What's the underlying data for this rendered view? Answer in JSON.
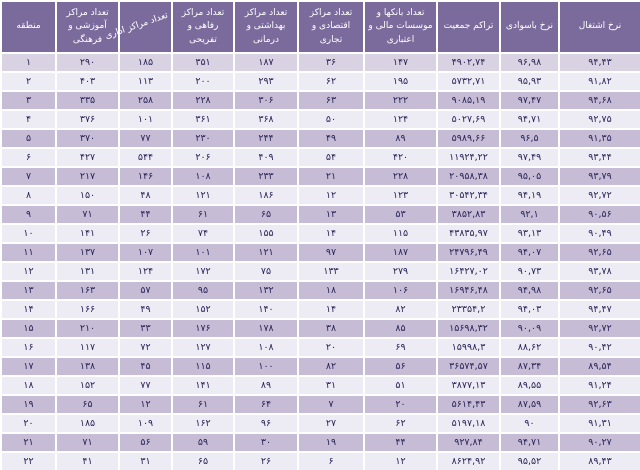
{
  "chart_data": {
    "type": "table",
    "direction": "rtl",
    "description_note": "",
    "columns": [
      {
        "key": "employment-rate",
        "label": "نرخ اشتغال",
        "rotated": false
      },
      {
        "key": "literacy-rate",
        "label": "نرخ باسوادی",
        "rotated": false
      },
      {
        "key": "population-density",
        "label": "تراکم جمعیت",
        "rotated": false
      },
      {
        "key": "banks-financial-credit-institutions",
        "label": "تعداد بانکها و موسسات مالی و اعتباری",
        "rotated": false
      },
      {
        "key": "economic-commercial-centers",
        "label": "تعداد مراکز اقتصادی و تجاری",
        "rotated": false
      },
      {
        "key": "health-medical-centers",
        "label": "تعداد مراکز بهداشتی و درمانی",
        "rotated": false
      },
      {
        "key": "welfare-recreational-centers",
        "label": "تعداد مراکز رفاهی و تفریحی",
        "rotated": false
      },
      {
        "key": "administrative-centers",
        "label": "تعداد مراکز اداری",
        "rotated": true
      },
      {
        "key": "educational-cultural-centers",
        "label": "تعداد مراکز آموزشی و فرهنگی",
        "rotated": false
      },
      {
        "key": "district",
        "label": "منطقه",
        "rotated": false
      }
    ],
    "rows": [
      [
        "۹۴,۴۳",
        "۹۶,۹۸",
        "۴۹۰۲,۷۴",
        "۱۴۷",
        "۳۶",
        "۱۸۷",
        "۳۵۱",
        "۱۸۵",
        "۲۹۰",
        "۱"
      ],
      [
        "۹۱,۸۲",
        "۹۵,۹۳",
        "۵۷۳۲,۷۱",
        "۱۹۵",
        "۶۲",
        "۲۹۳",
        "۲۰۰",
        "۱۱۳",
        "۴۰۳",
        "۲"
      ],
      [
        "۹۴,۶۸",
        "۹۷,۴۷",
        "۹۰۸۵,۱۹",
        "۲۲۲",
        "۶۳",
        "۳۰۶",
        "۲۲۸",
        "۲۵۸",
        "۳۳۵",
        "۳"
      ],
      [
        "۹۲,۷۵",
        "۹۴,۷۱",
        "۵۰۲۷,۶۹",
        "۱۲۴",
        "۵۰",
        "۳۶۸",
        "۳۶۱",
        "۱۰۱",
        "۳۷۶",
        "۴"
      ],
      [
        "۹۱,۳۵",
        "۹۶,۵",
        "۵۹۸۹,۶۶",
        "۸۹",
        "۴۹",
        "۲۴۴",
        "۲۳۰",
        "۷۷",
        "۳۷۰",
        "۵"
      ],
      [
        "۹۳,۴۴",
        "۹۷,۴۹",
        "۱۱۹۲۴,۲۲",
        "۴۲۰",
        "۵۴",
        "۴۰۹",
        "۲۰۶",
        "۵۴۴",
        "۴۲۷",
        "۶"
      ],
      [
        "۹۳,۷۹",
        "۹۵,۰۵",
        "۲۰۹۵۸,۳۸",
        "۲۲۸",
        "۲۱",
        "۲۳۳",
        "۱۰۸",
        "۱۴۶",
        "۲۱۷",
        "۷"
      ],
      [
        "۹۲,۷۲",
        "۹۴,۱۹",
        "۳۰۵۴۲,۳۴",
        "۱۲۳",
        "۱۲",
        "۱۸۶",
        "۱۲۱",
        "۴۸",
        "۱۵۰",
        "۸"
      ],
      [
        "۹۰,۵۶",
        "۹۲,۱",
        "۳۸۵۲,۸۳",
        "۵۳",
        "۱۳",
        "۶۵",
        "۶۱",
        "۴۴",
        "۷۱",
        "۹"
      ],
      [
        "۹۰,۴۹",
        "۹۳,۱۳",
        "۴۳۸۳۵,۹۷",
        "۱۱۵",
        "۱۴",
        "۱۵۵",
        "۷۴",
        "۲۶",
        "۱۴۱",
        "۱۰"
      ],
      [
        "۹۲,۶۵",
        "۹۴,۰۷",
        "۲۴۷۹۶,۴۹",
        "۱۸۷",
        "۹۷",
        "۱۲۱",
        "۱۰۱",
        "۱۰۷",
        "۱۳۷",
        "۱۱"
      ],
      [
        "۹۳,۷۸",
        "۹۰,۷۳",
        "۱۶۴۲۷,۰۲",
        "۲۷۹",
        "۱۳۳",
        "۷۵",
        "۱۷۲",
        "۱۲۴",
        "۱۳۱",
        "۱۲"
      ],
      [
        "۹۲,۶۵",
        "۹۴,۹۸",
        "۱۶۹۴۶,۴۸",
        "۱۰۶",
        "۱۸",
        "۱۳۲",
        "۹۵",
        "۵۷",
        "۱۶۳",
        "۱۳"
      ],
      [
        "۹۴,۴۷",
        "۹۴,۰۳",
        "۲۳۳۵۴,۲",
        "۸۲",
        "۱۴",
        "۱۴۰",
        "۱۵۲",
        "۴۹",
        "۱۶۶",
        "۱۴"
      ],
      [
        "۹۲,۷۲",
        "۹۰,۰۹",
        "۱۵۶۹۸,۳۲",
        "۸۵",
        "۳۸",
        "۱۷۸",
        "۱۷۶",
        "۳۳",
        "۲۱۰",
        "۱۵"
      ],
      [
        "۹۰,۴۲",
        "۸۸,۶۲",
        "۱۵۹۹۸,۳",
        "۶۹",
        "۲۰",
        "۱۰۸",
        "۱۲۷",
        "۷۲",
        "۱۱۷",
        "۱۶"
      ],
      [
        "۸۹,۵۴",
        "۸۷,۳۴",
        "۳۶۵۷۴,۵۷",
        "۵۶",
        "۸۲",
        "۱۰۰",
        "۱۱۵",
        "۴۵",
        "۱۳۸",
        "۱۷"
      ],
      [
        "۹۱,۲۴",
        "۸۹,۵۵",
        "۳۸۷۷,۱۳",
        "۵۱",
        "۳۱",
        "۸۹",
        "۱۴۱",
        "۷۷",
        "۱۵۲",
        "۱۸"
      ],
      [
        "۹۲,۶۳",
        "۸۷,۵۹",
        "۵۶۱۴,۴۳",
        "۲۰",
        "۷",
        "۶۴",
        "۶۱",
        "۱۲",
        "۶۵",
        "۱۹"
      ],
      [
        "۹۱,۳۱",
        "۹۰",
        "۵۱۹۷,۱۸",
        "۶۲",
        "۲۷",
        "۹۶",
        "۱۶۲",
        "۱۰۹",
        "۱۸۵",
        "۲۰"
      ],
      [
        "۹۰,۲۷",
        "۹۴,۷۱",
        "۹۲۷,۸۴",
        "۴۴",
        "۱۹",
        "۳۰",
        "۵۹",
        "۵۶",
        "۷۱",
        "۲۱"
      ],
      [
        "۸۹,۴۳",
        "۹۵,۵۲",
        "۸۶۲۴,۹۲",
        "۱۲",
        "۶",
        "۲۶",
        "۶۵",
        "۳۱",
        "۴۱",
        "۲۲"
      ]
    ]
  },
  "colors": {
    "header_bg": "#7b6b9d",
    "header_text": "#ffffff",
    "row_dark": "#c6bcd6",
    "row_light": "#edebf3",
    "row_first": "#d8d2e2",
    "cell_text": "#2b2558",
    "grid": "#ffffff"
  }
}
